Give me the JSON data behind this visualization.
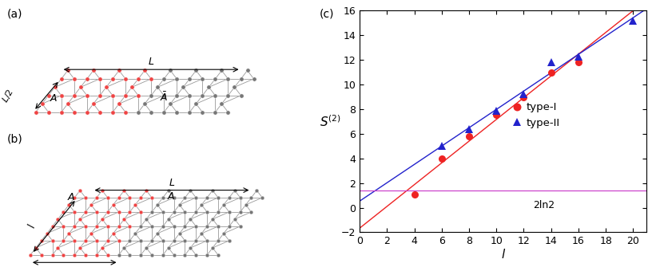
{
  "type1_x": [
    4,
    6,
    8,
    10,
    12,
    14,
    16
  ],
  "type1_y": [
    1.05,
    4.0,
    5.8,
    7.55,
    9.0,
    11.0,
    11.8
  ],
  "type2_x": [
    6,
    8,
    10,
    12,
    14,
    16,
    20
  ],
  "type2_y": [
    5.0,
    6.4,
    7.85,
    9.2,
    11.85,
    12.3,
    15.2
  ],
  "color_type1": "#EE2222",
  "color_type2": "#2222CC",
  "color_fit1": "#EE2222",
  "color_fit2": "#2222CC",
  "color_hline": "#CC44CC",
  "hline_y": 1.3862943611198906,
  "hline_label": "2ln2",
  "xlabel": "l",
  "ylabel": "$S^{(2)}$",
  "panel_label_c": "(c)",
  "xlim": [
    0,
    21
  ],
  "ylim": [
    -2,
    16
  ],
  "xticks": [
    0,
    2,
    4,
    6,
    8,
    10,
    12,
    14,
    16,
    18,
    20
  ],
  "yticks": [
    -2,
    0,
    2,
    4,
    6,
    8,
    10,
    12,
    14,
    16
  ],
  "legend_type1": "type-I",
  "legend_type2": "type-II",
  "node_color_red": "#EE4444",
  "node_color_gray": "#777777",
  "edge_color": "#888888",
  "edge_color_red": "#BB3333"
}
